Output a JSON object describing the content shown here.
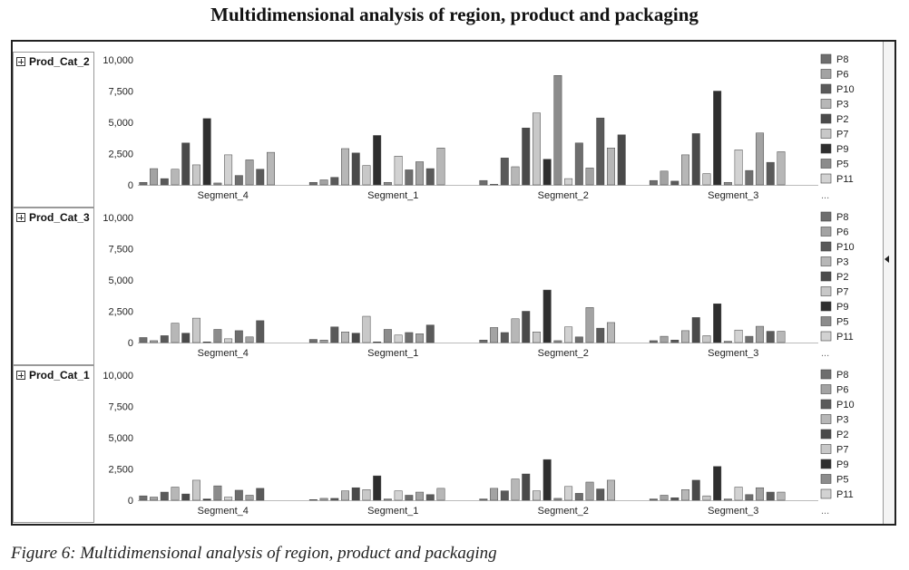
{
  "title": "Multidimensional analysis of region, product and packaging",
  "caption": "Figure 6: Multidimensional analysis of region, product and packaging",
  "row_headers": [
    "Prod_Cat_2",
    "Prod_Cat_3",
    "Prod_Cat_1"
  ],
  "legend_more": "...",
  "colors": {
    "P8": "#6e6e6e",
    "P6": "#a3a3a3",
    "P10": "#5a5a5a",
    "P3": "#b7b7b7",
    "P2": "#4a4a4a",
    "P7": "#c8c8c8",
    "P9": "#2e2e2e",
    "P5": "#8c8c8c",
    "P11": "#d2d2d2"
  },
  "chart_data": [
    {
      "type": "bar",
      "panel": "Prod_Cat_2",
      "categories": [
        "Segment_4",
        "Segment_1",
        "Segment_2",
        "Segment_3"
      ],
      "ylim": [
        0,
        10000
      ],
      "yticks": [
        "0",
        "2,500",
        "5,000",
        "7,500",
        "10,000"
      ],
      "legend": [
        "P8",
        "P6",
        "P10",
        "P3",
        "P2",
        "P7",
        "P9",
        "P5",
        "P11"
      ],
      "legend_position": "right",
      "bars_per_category": 16,
      "values": [
        [
          200,
          1300,
          500,
          1250,
          3350,
          1600,
          5300,
          150,
          2400,
          750,
          2000,
          1250,
          2600
        ],
        [
          200,
          400,
          600,
          2900,
          2550,
          1550,
          3950,
          200,
          2300,
          1200,
          1850,
          1300,
          2950
        ],
        [
          350,
          50,
          2150,
          1450,
          4550,
          5750,
          2050,
          8750,
          500,
          3350,
          1350,
          5350,
          2950,
          4000
        ],
        [
          350,
          1100,
          300,
          2400,
          4100,
          900,
          7500,
          200,
          2800,
          1150,
          4150,
          1800,
          2650
        ]
      ]
    },
    {
      "type": "bar",
      "panel": "Prod_Cat_3",
      "categories": [
        "Segment_4",
        "Segment_1",
        "Segment_2",
        "Segment_3"
      ],
      "ylim": [
        0,
        10000
      ],
      "yticks": [
        "0",
        "2,500",
        "5,000",
        "7,500",
        "10,000"
      ],
      "legend": [
        "P8",
        "P6",
        "P10",
        "P3",
        "P2",
        "P7",
        "P9",
        "P5",
        "P11"
      ],
      "legend_position": "right",
      "bars_per_category": 16,
      "values": [
        [
          400,
          150,
          550,
          1550,
          750,
          1950,
          50,
          1050,
          300,
          950,
          450,
          1750
        ],
        [
          250,
          200,
          1250,
          850,
          750,
          2100,
          50,
          1050,
          600,
          800,
          700,
          1400
        ],
        [
          200,
          1200,
          800,
          1900,
          2500,
          850,
          4200,
          150,
          1250,
          450,
          2800,
          1150,
          1600
        ],
        [
          150,
          500,
          200,
          950,
          2000,
          550,
          3100,
          100,
          1000,
          500,
          1300,
          900,
          900
        ]
      ]
    },
    {
      "type": "bar",
      "panel": "Prod_Cat_1",
      "categories": [
        "Segment_4",
        "Segment_1",
        "Segment_2",
        "Segment_3"
      ],
      "ylim": [
        0,
        10000
      ],
      "yticks": [
        "0",
        "2,500",
        "5,000",
        "7,500",
        "10,000"
      ],
      "legend": [
        "P8",
        "P6",
        "P10",
        "P3",
        "P2",
        "P7",
        "P9",
        "P5",
        "P11"
      ],
      "legend_position": "right",
      "bars_per_category": 16,
      "values": [
        [
          350,
          250,
          650,
          1050,
          500,
          1600,
          100,
          1150,
          250,
          800,
          400,
          950
        ],
        [
          50,
          150,
          150,
          750,
          1000,
          850,
          1950,
          100,
          750,
          400,
          650,
          450,
          950
        ],
        [
          100,
          950,
          750,
          1700,
          2100,
          750,
          3250,
          150,
          1100,
          550,
          1450,
          900,
          1600
        ],
        [
          100,
          400,
          200,
          850,
          1600,
          350,
          2700,
          100,
          1050,
          450,
          1000,
          650,
          650
        ]
      ]
    }
  ]
}
